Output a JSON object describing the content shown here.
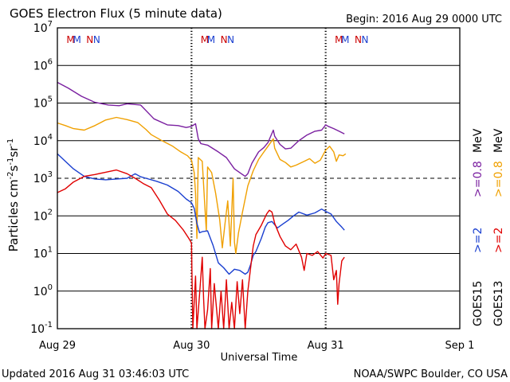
{
  "chart_data": {
    "type": "line",
    "title": "GOES Electron Flux (5 minute data)",
    "begin_label": "Begin: 2016 Aug 29 0000 UTC",
    "xlabel": "Universal Time",
    "ylabel_parts": [
      "Particles cm",
      "-2",
      "s",
      "-1",
      "sr",
      "-1"
    ],
    "footer_left": "Updated 2016 Aug 31 03:46:03 UTC",
    "footer_right": "NOAA/SWPC Boulder, CO USA",
    "x_unit": "days since 2016 Aug 29 0000 UTC",
    "xlim": [
      0,
      3
    ],
    "ylim_log10": [
      -1,
      7
    ],
    "x_ticks": [
      {
        "x": 0,
        "label": "Aug 29"
      },
      {
        "x": 1,
        "label": "Aug 30"
      },
      {
        "x": 2,
        "label": "Aug 31"
      },
      {
        "x": 3,
        "label": "Sep 1"
      }
    ],
    "y_ticks": [
      {
        "exp": 7,
        "base": "10",
        "sup": "7"
      },
      {
        "exp": 6,
        "base": "10",
        "sup": "6"
      },
      {
        "exp": 5,
        "base": "10",
        "sup": "5"
      },
      {
        "exp": 4,
        "base": "10",
        "sup": "4"
      },
      {
        "exp": 3,
        "base": "10",
        "sup": "3"
      },
      {
        "exp": 2,
        "base": "10",
        "sup": "2"
      },
      {
        "exp": 1,
        "base": "10",
        "sup": "1"
      },
      {
        "exp": 0,
        "base": "10",
        "sup": "0"
      },
      {
        "exp": -1,
        "base": "10",
        "sup": "-1"
      }
    ],
    "threshold_log10": 3,
    "day_markers": [
      {
        "x": 0.0,
        "letters": [
          {
            "dx": 0.35,
            "text": "M",
            "color": "#cc0000"
          },
          {
            "dx": 0.52,
            "text": "M",
            "color": "#1a3fd0"
          },
          {
            "dx": 0.86,
            "text": "N",
            "color": "#cc0000"
          },
          {
            "dx": 1.04,
            "text": "N",
            "color": "#1a3fd0"
          }
        ]
      },
      {
        "x": 1.0,
        "letters": [
          {
            "dx": 0.35,
            "text": "M",
            "color": "#cc0000"
          },
          {
            "dx": 0.52,
            "text": "M",
            "color": "#1a3fd0"
          },
          {
            "dx": 0.86,
            "text": "N",
            "color": "#cc0000"
          },
          {
            "dx": 1.04,
            "text": "N",
            "color": "#1a3fd0"
          }
        ]
      },
      {
        "x": 2.0,
        "letters": [
          {
            "dx": 0.35,
            "text": "M",
            "color": "#cc0000"
          },
          {
            "dx": 0.52,
            "text": "M",
            "color": "#1a3fd0"
          },
          {
            "dx": 0.86,
            "text": "N",
            "color": "#cc0000"
          },
          {
            "dx": 1.04,
            "text": "N",
            "color": "#1a3fd0"
          }
        ]
      }
    ],
    "right_legend": {
      "labels": [
        "GOES15",
        "GOES13"
      ],
      "left_col": [
        {
          "text": ">=2",
          "color": "#1a3fd0"
        },
        {
          "text": ">=0.8",
          "color": "#7a1fa0"
        }
      ],
      "right_col": [
        {
          "text": ">=2",
          "color": "#cc0000"
        },
        {
          "text": ">=0.8",
          "color": "#f0a000"
        }
      ],
      "unit": "MeV"
    },
    "series": [
      {
        "name": "GOES15 >=0.8 MeV",
        "color": "#7a1fa0",
        "points": [
          [
            0.0,
            5.55
          ],
          [
            0.08,
            5.4
          ],
          [
            0.18,
            5.18
          ],
          [
            0.28,
            5.02
          ],
          [
            0.38,
            4.95
          ],
          [
            0.46,
            4.93
          ],
          [
            0.52,
            4.98
          ],
          [
            0.62,
            4.95
          ],
          [
            0.72,
            4.58
          ],
          [
            0.82,
            4.42
          ],
          [
            0.9,
            4.4
          ],
          [
            0.96,
            4.35
          ],
          [
            1.0,
            4.38
          ],
          [
            1.03,
            4.45
          ],
          [
            1.05,
            4.05
          ],
          [
            1.07,
            3.92
          ],
          [
            1.12,
            3.88
          ],
          [
            1.2,
            3.7
          ],
          [
            1.26,
            3.55
          ],
          [
            1.32,
            3.25
          ],
          [
            1.38,
            3.1
          ],
          [
            1.4,
            3.05
          ],
          [
            1.42,
            3.12
          ],
          [
            1.45,
            3.4
          ],
          [
            1.5,
            3.7
          ],
          [
            1.54,
            3.82
          ],
          [
            1.57,
            3.95
          ],
          [
            1.61,
            4.28
          ],
          [
            1.62,
            4.12
          ],
          [
            1.66,
            3.9
          ],
          [
            1.7,
            3.78
          ],
          [
            1.74,
            3.8
          ],
          [
            1.8,
            4.0
          ],
          [
            1.86,
            4.15
          ],
          [
            1.92,
            4.25
          ],
          [
            1.97,
            4.28
          ],
          [
            2.0,
            4.42
          ],
          [
            2.02,
            4.38
          ],
          [
            2.06,
            4.32
          ],
          [
            2.1,
            4.25
          ],
          [
            2.14,
            4.18
          ]
        ]
      },
      {
        "name": "GOES13 >=0.8 MeV",
        "color": "#f0a000",
        "points": [
          [
            0.0,
            4.47
          ],
          [
            0.06,
            4.4
          ],
          [
            0.12,
            4.32
          ],
          [
            0.2,
            4.28
          ],
          [
            0.28,
            4.4
          ],
          [
            0.36,
            4.55
          ],
          [
            0.44,
            4.62
          ],
          [
            0.52,
            4.56
          ],
          [
            0.6,
            4.48
          ],
          [
            0.66,
            4.3
          ],
          [
            0.7,
            4.16
          ],
          [
            0.78,
            4.0
          ],
          [
            0.86,
            3.85
          ],
          [
            0.92,
            3.7
          ],
          [
            0.97,
            3.6
          ],
          [
            1.0,
            3.48
          ],
          [
            1.02,
            3.15
          ],
          [
            1.03,
            2.6
          ],
          [
            1.04,
            1.4
          ],
          [
            1.05,
            3.55
          ],
          [
            1.08,
            3.45
          ],
          [
            1.1,
            2.2
          ],
          [
            1.11,
            1.6
          ],
          [
            1.12,
            3.3
          ],
          [
            1.15,
            3.15
          ],
          [
            1.18,
            2.6
          ],
          [
            1.21,
            1.9
          ],
          [
            1.23,
            1.15
          ],
          [
            1.25,
            1.8
          ],
          [
            1.27,
            2.4
          ],
          [
            1.29,
            1.2
          ],
          [
            1.31,
            3.0
          ],
          [
            1.32,
            1.3
          ],
          [
            1.33,
            1.0
          ],
          [
            1.35,
            1.55
          ],
          [
            1.38,
            2.1
          ],
          [
            1.42,
            2.8
          ],
          [
            1.46,
            3.2
          ],
          [
            1.5,
            3.5
          ],
          [
            1.54,
            3.7
          ],
          [
            1.57,
            3.85
          ],
          [
            1.61,
            4.05
          ],
          [
            1.62,
            3.8
          ],
          [
            1.66,
            3.5
          ],
          [
            1.7,
            3.42
          ],
          [
            1.74,
            3.3
          ],
          [
            1.78,
            3.35
          ],
          [
            1.84,
            3.45
          ],
          [
            1.88,
            3.52
          ],
          [
            1.92,
            3.4
          ],
          [
            1.96,
            3.48
          ],
          [
            2.0,
            3.75
          ],
          [
            2.03,
            3.85
          ],
          [
            2.06,
            3.7
          ],
          [
            2.08,
            3.45
          ],
          [
            2.1,
            3.62
          ],
          [
            2.13,
            3.6
          ],
          [
            2.15,
            3.65
          ]
        ]
      },
      {
        "name": "GOES15 >=2 MeV",
        "color": "#1a3fd0",
        "points": [
          [
            0.0,
            3.65
          ],
          [
            0.06,
            3.45
          ],
          [
            0.12,
            3.25
          ],
          [
            0.2,
            3.05
          ],
          [
            0.28,
            2.98
          ],
          [
            0.36,
            2.96
          ],
          [
            0.44,
            2.98
          ],
          [
            0.52,
            3.0
          ],
          [
            0.58,
            3.12
          ],
          [
            0.62,
            3.04
          ],
          [
            0.66,
            3.0
          ],
          [
            0.74,
            2.92
          ],
          [
            0.82,
            2.82
          ],
          [
            0.9,
            2.65
          ],
          [
            0.96,
            2.45
          ],
          [
            1.0,
            2.35
          ],
          [
            1.02,
            2.2
          ],
          [
            1.04,
            1.8
          ],
          [
            1.06,
            1.55
          ],
          [
            1.08,
            1.58
          ],
          [
            1.12,
            1.6
          ],
          [
            1.16,
            1.22
          ],
          [
            1.2,
            0.75
          ],
          [
            1.24,
            0.62
          ],
          [
            1.28,
            0.45
          ],
          [
            1.32,
            0.58
          ],
          [
            1.36,
            0.55
          ],
          [
            1.4,
            0.45
          ],
          [
            1.42,
            0.5
          ],
          [
            1.44,
            0.7
          ],
          [
            1.46,
            0.95
          ],
          [
            1.48,
            1.05
          ],
          [
            1.52,
            1.4
          ],
          [
            1.55,
            1.7
          ],
          [
            1.57,
            1.82
          ],
          [
            1.6,
            1.85
          ],
          [
            1.64,
            1.68
          ],
          [
            1.68,
            1.78
          ],
          [
            1.72,
            1.88
          ],
          [
            1.76,
            2.0
          ],
          [
            1.8,
            2.1
          ],
          [
            1.86,
            2.02
          ],
          [
            1.92,
            2.08
          ],
          [
            1.97,
            2.18
          ],
          [
            2.0,
            2.12
          ],
          [
            2.04,
            2.05
          ],
          [
            2.08,
            1.85
          ],
          [
            2.12,
            1.7
          ],
          [
            2.14,
            1.62
          ]
        ]
      },
      {
        "name": "GOES13 >=2 MeV",
        "color": "#e00000",
        "points": [
          [
            0.0,
            2.62
          ],
          [
            0.06,
            2.72
          ],
          [
            0.12,
            2.9
          ],
          [
            0.2,
            3.05
          ],
          [
            0.28,
            3.1
          ],
          [
            0.36,
            3.16
          ],
          [
            0.44,
            3.22
          ],
          [
            0.52,
            3.12
          ],
          [
            0.58,
            3.0
          ],
          [
            0.64,
            2.86
          ],
          [
            0.7,
            2.75
          ],
          [
            0.76,
            2.42
          ],
          [
            0.82,
            2.05
          ],
          [
            0.88,
            1.88
          ],
          [
            0.94,
            1.62
          ],
          [
            0.98,
            1.4
          ],
          [
            1.0,
            1.28
          ],
          [
            1.01,
            -1.0
          ],
          [
            1.03,
            0.4
          ],
          [
            1.04,
            -1.0
          ],
          [
            1.06,
            -0.1
          ],
          [
            1.08,
            0.9
          ],
          [
            1.09,
            -0.2
          ],
          [
            1.1,
            -1.0
          ],
          [
            1.12,
            -0.5
          ],
          [
            1.14,
            0.6
          ],
          [
            1.15,
            -1.0
          ],
          [
            1.17,
            0.2
          ],
          [
            1.2,
            -1.0
          ],
          [
            1.22,
            0.0
          ],
          [
            1.24,
            -1.0
          ],
          [
            1.26,
            0.3
          ],
          [
            1.28,
            -1.0
          ],
          [
            1.3,
            -0.3
          ],
          [
            1.32,
            -1.0
          ],
          [
            1.34,
            0.25
          ],
          [
            1.36,
            -0.6
          ],
          [
            1.38,
            0.3
          ],
          [
            1.4,
            -1.0
          ],
          [
            1.42,
            0.0
          ],
          [
            1.44,
            0.6
          ],
          [
            1.46,
            1.2
          ],
          [
            1.48,
            1.5
          ],
          [
            1.52,
            1.75
          ],
          [
            1.56,
            2.05
          ],
          [
            1.58,
            2.15
          ],
          [
            1.6,
            2.1
          ],
          [
            1.62,
            1.8
          ],
          [
            1.66,
            1.45
          ],
          [
            1.7,
            1.2
          ],
          [
            1.74,
            1.1
          ],
          [
            1.78,
            1.25
          ],
          [
            1.82,
            0.9
          ],
          [
            1.84,
            0.55
          ],
          [
            1.86,
            1.0
          ],
          [
            1.9,
            0.95
          ],
          [
            1.94,
            1.05
          ],
          [
            1.98,
            0.88
          ],
          [
            2.0,
            1.0
          ],
          [
            2.04,
            0.95
          ],
          [
            2.06,
            0.3
          ],
          [
            2.08,
            0.55
          ],
          [
            2.09,
            -0.35
          ],
          [
            2.1,
            0.2
          ],
          [
            2.12,
            0.8
          ],
          [
            2.14,
            0.9
          ]
        ]
      }
    ]
  }
}
